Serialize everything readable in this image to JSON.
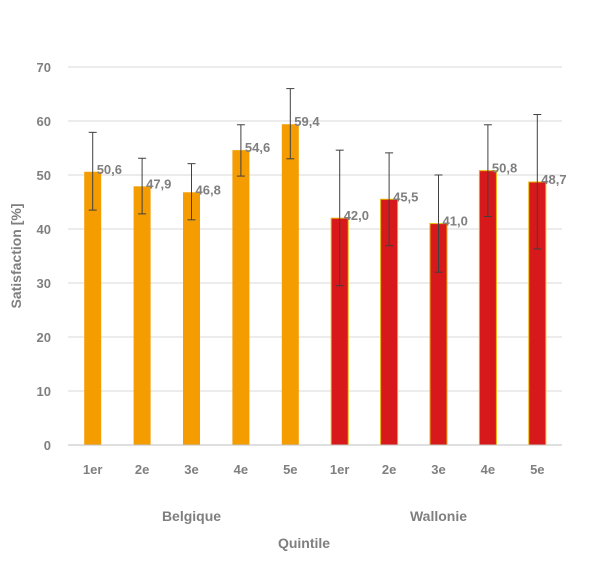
{
  "chart_data": {
    "type": "bar",
    "title": "",
    "xlabel": "Quintile",
    "ylabel": "Satisfaction [%]",
    "ylim": [
      0,
      70
    ],
    "yticks": [
      "0",
      "10",
      "20",
      "30",
      "40",
      "50",
      "60",
      "70"
    ],
    "grid": true,
    "legend": "none",
    "groups": [
      {
        "name": "Belgique",
        "color": "#F59D00",
        "categories": [
          "1er",
          "2e",
          "3e",
          "4e",
          "5e"
        ],
        "values": [
          50.6,
          47.9,
          46.8,
          54.6,
          59.4
        ],
        "labels": [
          "50,6",
          "47,9",
          "46,8",
          "54,6",
          "59,4"
        ],
        "error_low": [
          43.5,
          42.8,
          41.7,
          49.8,
          53.0
        ],
        "error_high": [
          57.9,
          53.1,
          52.1,
          59.3,
          66.0
        ]
      },
      {
        "name": "Wallonie",
        "color": "#D7191C",
        "categories": [
          "1er",
          "2e",
          "3e",
          "4e",
          "5e"
        ],
        "values": [
          42.0,
          45.5,
          41.0,
          50.8,
          48.7
        ],
        "labels": [
          "42,0",
          "45,5",
          "41,0",
          "50,8",
          "48,7"
        ],
        "error_low": [
          29.5,
          36.9,
          32.0,
          42.3,
          36.3
        ],
        "error_high": [
          54.6,
          54.1,
          50.0,
          59.3,
          61.2
        ]
      }
    ]
  }
}
